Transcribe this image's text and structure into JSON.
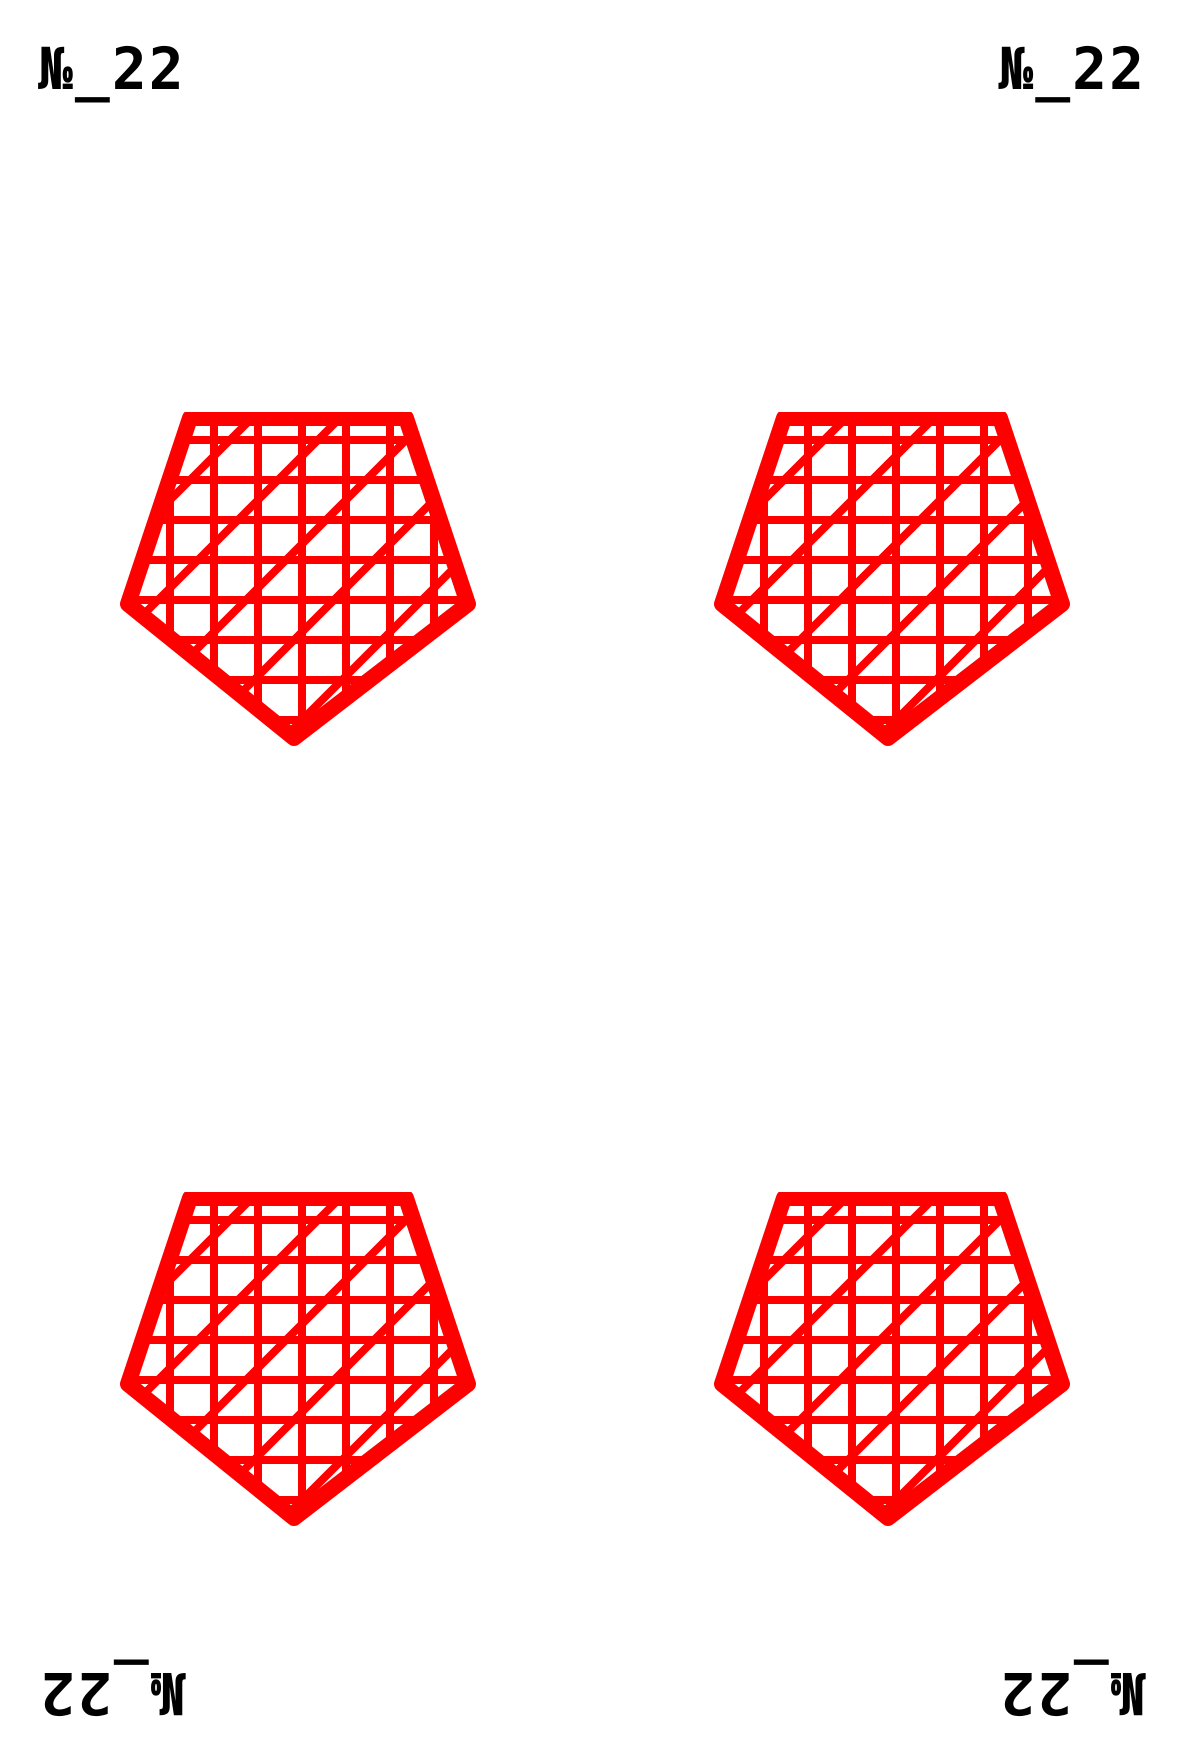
{
  "card": {
    "index_label": "№_22",
    "pip_color": "#ff0000",
    "text_color": "#000000",
    "pip_shape": "pentagon-grid-icon",
    "pip_count": 4
  }
}
